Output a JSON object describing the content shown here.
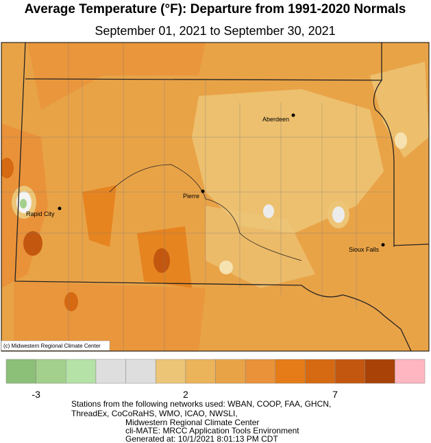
{
  "header": {
    "title": "Average Temperature (°F): Departure from 1991-2020 Normals",
    "subtitle": "September 01, 2021 to September 30, 2021"
  },
  "map": {
    "cities": [
      {
        "name": "Aberdeen"
      },
      {
        "name": "Pierre"
      },
      {
        "name": "Rapid City"
      },
      {
        "name": "Sioux Falls"
      }
    ],
    "copyright": "(c) Midwestern Regional Climate Center"
  },
  "legend": {
    "colors": [
      "#8cbf78",
      "#a3d08c",
      "#b5e2a6",
      "#dedede",
      "#dedede",
      "#edc577",
      "#ebb35a",
      "#e9a347",
      "#e9923a",
      "#e57c17",
      "#d56a12",
      "#c4570f",
      "#a84207",
      "#ffb6c1"
    ],
    "labels": [
      "-3",
      "2",
      "7"
    ]
  },
  "footer": {
    "lines": [
      "Stations from the following networks used: WBAN, COOP, FAA, GHCN,",
      "ThreadEx, CoCoRaHS, WMO, ICAO, NWSLI,",
      "Midwestern Regional Climate Center",
      "cli-MATE: MRCC Application Tools Environment",
      "Generated at: 10/1/2021 8:01:13 PM CDT"
    ]
  }
}
